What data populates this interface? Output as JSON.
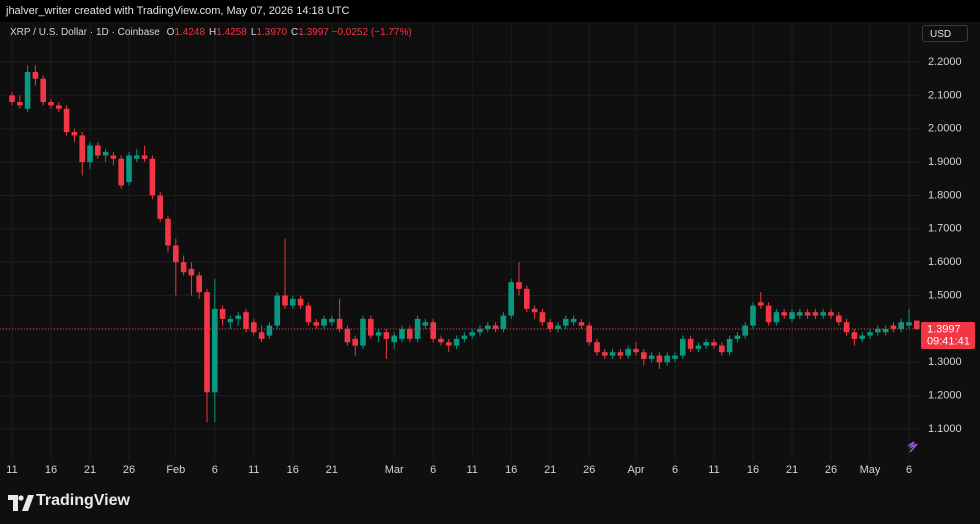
{
  "chart_data": {
    "type": "candlestick",
    "header": "jhalver_writer created with TradingView.com, May 07, 2026 14:18 UTC",
    "ohlc_legend": [
      {
        "key": "O",
        "value": "1.4248"
      },
      {
        "key": "H",
        "value": "1.4258"
      },
      {
        "key": "L",
        "value": "1.3970"
      },
      {
        "key": "C",
        "value": "1.3997"
      }
    ],
    "change": "−0.0252 (−1.77%)",
    "currency": "USD",
    "last_price_label": "1.3997",
    "countdown": "09:41:41",
    "brand": "TradingView",
    "up_color": "#089981",
    "down_color": "#f23645",
    "grid": true,
    "categories": [
      "11",
      null,
      null,
      null,
      null,
      "16",
      null,
      null,
      null,
      null,
      "21",
      null,
      null,
      null,
      null,
      "26",
      null,
      null,
      null,
      null,
      null,
      "Feb",
      null,
      null,
      null,
      null,
      "6",
      null,
      null,
      null,
      null,
      "11",
      null,
      null,
      null,
      null,
      "16",
      null,
      null,
      null,
      null,
      "21",
      null,
      null,
      null,
      null,
      null,
      null,
      null,
      "Mar",
      null,
      null,
      null,
      null,
      "6",
      null,
      null,
      null,
      null,
      "11",
      null,
      null,
      null,
      null,
      "16",
      null,
      null,
      null,
      null,
      "21",
      null,
      null,
      null,
      null,
      "26",
      null,
      null,
      null,
      null,
      null,
      "Apr",
      null,
      null,
      null,
      null,
      "6",
      null,
      null,
      null,
      null,
      "11",
      null,
      null,
      null,
      null,
      "16",
      null,
      null,
      null,
      null,
      "21",
      null,
      null,
      null,
      null,
      "26",
      null,
      null,
      null,
      null,
      "May",
      null,
      null,
      null,
      null,
      "6",
      null
    ],
    "series": [
      {
        "name": "XRP / U.S. Dollar · 1D · Coinbase",
        "values": [
          [
            2.1,
            2.11,
            2.07,
            2.08
          ],
          [
            2.08,
            2.1,
            2.06,
            2.07
          ],
          [
            2.06,
            2.19,
            2.05,
            2.17
          ],
          [
            2.17,
            2.19,
            2.13,
            2.15
          ],
          [
            2.15,
            2.16,
            2.07,
            2.08
          ],
          [
            2.08,
            2.09,
            2.06,
            2.07
          ],
          [
            2.07,
            2.08,
            2.05,
            2.06
          ],
          [
            2.06,
            2.07,
            1.98,
            1.99
          ],
          [
            1.99,
            2.0,
            1.96,
            1.98
          ],
          [
            1.98,
            1.99,
            1.86,
            1.9
          ],
          [
            1.9,
            1.96,
            1.88,
            1.95
          ],
          [
            1.95,
            1.96,
            1.91,
            1.92
          ],
          [
            1.92,
            1.94,
            1.9,
            1.93
          ],
          [
            1.92,
            1.93,
            1.89,
            1.91
          ],
          [
            1.91,
            1.92,
            1.82,
            1.83
          ],
          [
            1.84,
            1.93,
            1.83,
            1.92
          ],
          [
            1.91,
            1.94,
            1.9,
            1.92
          ],
          [
            1.92,
            1.95,
            1.9,
            1.91
          ],
          [
            1.91,
            1.92,
            1.79,
            1.8
          ],
          [
            1.8,
            1.81,
            1.72,
            1.73
          ],
          [
            1.73,
            1.74,
            1.63,
            1.65
          ],
          [
            1.65,
            1.67,
            1.5,
            1.6
          ],
          [
            1.6,
            1.62,
            1.56,
            1.57
          ],
          [
            1.58,
            1.6,
            1.5,
            1.56
          ],
          [
            1.56,
            1.57,
            1.49,
            1.51
          ],
          [
            1.51,
            1.52,
            1.12,
            1.21
          ],
          [
            1.21,
            1.55,
            1.12,
            1.46
          ],
          [
            1.46,
            1.47,
            1.41,
            1.43
          ],
          [
            1.42,
            1.44,
            1.4,
            1.43
          ],
          [
            1.43,
            1.45,
            1.41,
            1.44
          ],
          [
            1.45,
            1.46,
            1.39,
            1.4
          ],
          [
            1.42,
            1.43,
            1.38,
            1.39
          ],
          [
            1.39,
            1.41,
            1.36,
            1.37
          ],
          [
            1.38,
            1.42,
            1.37,
            1.41
          ],
          [
            1.41,
            1.51,
            1.4,
            1.5
          ],
          [
            1.5,
            1.67,
            1.46,
            1.47
          ],
          [
            1.47,
            1.5,
            1.46,
            1.49
          ],
          [
            1.49,
            1.5,
            1.46,
            1.47
          ],
          [
            1.47,
            1.48,
            1.41,
            1.42
          ],
          [
            1.42,
            1.43,
            1.4,
            1.41
          ],
          [
            1.41,
            1.44,
            1.4,
            1.43
          ],
          [
            1.42,
            1.44,
            1.41,
            1.43
          ],
          [
            1.43,
            1.49,
            1.39,
            1.4
          ],
          [
            1.4,
            1.41,
            1.35,
            1.36
          ],
          [
            1.37,
            1.38,
            1.32,
            1.35
          ],
          [
            1.35,
            1.44,
            1.34,
            1.43
          ],
          [
            1.43,
            1.44,
            1.37,
            1.38
          ],
          [
            1.38,
            1.4,
            1.36,
            1.39
          ],
          [
            1.39,
            1.4,
            1.31,
            1.37
          ],
          [
            1.36,
            1.39,
            1.34,
            1.38
          ],
          [
            1.37,
            1.41,
            1.36,
            1.4
          ],
          [
            1.4,
            1.41,
            1.36,
            1.37
          ],
          [
            1.37,
            1.44,
            1.36,
            1.43
          ],
          [
            1.41,
            1.43,
            1.4,
            1.42
          ],
          [
            1.42,
            1.43,
            1.36,
            1.37
          ],
          [
            1.37,
            1.38,
            1.35,
            1.36
          ],
          [
            1.36,
            1.37,
            1.33,
            1.35
          ],
          [
            1.35,
            1.38,
            1.34,
            1.37
          ],
          [
            1.37,
            1.39,
            1.36,
            1.38
          ],
          [
            1.38,
            1.4,
            1.37,
            1.39
          ],
          [
            1.39,
            1.41,
            1.38,
            1.4
          ],
          [
            1.4,
            1.42,
            1.39,
            1.41
          ],
          [
            1.41,
            1.42,
            1.39,
            1.4
          ],
          [
            1.4,
            1.45,
            1.39,
            1.44
          ],
          [
            1.44,
            1.55,
            1.43,
            1.54
          ],
          [
            1.54,
            1.6,
            1.5,
            1.52
          ],
          [
            1.52,
            1.53,
            1.45,
            1.46
          ],
          [
            1.46,
            1.47,
            1.43,
            1.45
          ],
          [
            1.45,
            1.46,
            1.41,
            1.42
          ],
          [
            1.42,
            1.43,
            1.39,
            1.4
          ],
          [
            1.4,
            1.42,
            1.39,
            1.41
          ],
          [
            1.41,
            1.44,
            1.4,
            1.43
          ],
          [
            1.42,
            1.44,
            1.41,
            1.43
          ],
          [
            1.42,
            1.43,
            1.4,
            1.41
          ],
          [
            1.41,
            1.42,
            1.35,
            1.36
          ],
          [
            1.36,
            1.37,
            1.32,
            1.33
          ],
          [
            1.33,
            1.34,
            1.31,
            1.32
          ],
          [
            1.32,
            1.34,
            1.31,
            1.33
          ],
          [
            1.33,
            1.34,
            1.31,
            1.32
          ],
          [
            1.32,
            1.35,
            1.31,
            1.34
          ],
          [
            1.34,
            1.36,
            1.32,
            1.33
          ],
          [
            1.33,
            1.34,
            1.29,
            1.31
          ],
          [
            1.31,
            1.33,
            1.3,
            1.32
          ],
          [
            1.32,
            1.33,
            1.28,
            1.3
          ],
          [
            1.3,
            1.33,
            1.29,
            1.32
          ],
          [
            1.31,
            1.33,
            1.3,
            1.32
          ],
          [
            1.32,
            1.38,
            1.31,
            1.37
          ],
          [
            1.37,
            1.38,
            1.33,
            1.34
          ],
          [
            1.34,
            1.36,
            1.33,
            1.35
          ],
          [
            1.35,
            1.37,
            1.34,
            1.36
          ],
          [
            1.36,
            1.37,
            1.34,
            1.35
          ],
          [
            1.35,
            1.36,
            1.32,
            1.33
          ],
          [
            1.33,
            1.38,
            1.32,
            1.37
          ],
          [
            1.37,
            1.39,
            1.36,
            1.38
          ],
          [
            1.38,
            1.42,
            1.37,
            1.41
          ],
          [
            1.41,
            1.48,
            1.4,
            1.47
          ],
          [
            1.48,
            1.51,
            1.46,
            1.47
          ],
          [
            1.47,
            1.48,
            1.41,
            1.42
          ],
          [
            1.42,
            1.46,
            1.41,
            1.45
          ],
          [
            1.45,
            1.46,
            1.43,
            1.44
          ],
          [
            1.43,
            1.46,
            1.42,
            1.45
          ],
          [
            1.44,
            1.46,
            1.43,
            1.45
          ],
          [
            1.45,
            1.46,
            1.43,
            1.44
          ],
          [
            1.45,
            1.46,
            1.43,
            1.44
          ],
          [
            1.44,
            1.46,
            1.43,
            1.45
          ],
          [
            1.45,
            1.46,
            1.43,
            1.44
          ],
          [
            1.44,
            1.45,
            1.41,
            1.42
          ],
          [
            1.42,
            1.43,
            1.38,
            1.39
          ],
          [
            1.39,
            1.4,
            1.35,
            1.37
          ],
          [
            1.37,
            1.39,
            1.36,
            1.38
          ],
          [
            1.38,
            1.4,
            1.37,
            1.39
          ],
          [
            1.39,
            1.41,
            1.38,
            1.4
          ],
          [
            1.39,
            1.41,
            1.38,
            1.4
          ],
          [
            1.41,
            1.42,
            1.39,
            1.4
          ],
          [
            1.4,
            1.43,
            1.39,
            1.42
          ],
          [
            1.41,
            1.46,
            1.4,
            1.42
          ],
          [
            1.4248,
            1.4258,
            1.397,
            1.3997
          ]
        ]
      }
    ],
    "ylim": [
      1.007,
      2.266
    ],
    "yticks": [
      {
        "value": 1.1,
        "label": "1.1000"
      },
      {
        "value": 1.2,
        "label": "1.2000"
      },
      {
        "value": 1.3,
        "label": "1.3000"
      },
      {
        "value": 1.4,
        "label": "1.4000"
      },
      {
        "value": 1.5,
        "label": "1.5000"
      },
      {
        "value": 1.6,
        "label": "1.6000"
      },
      {
        "value": 1.7,
        "label": "1.7000"
      },
      {
        "value": 1.8,
        "label": "1.8000"
      },
      {
        "value": 1.9,
        "label": "1.9000"
      },
      {
        "value": 2.0,
        "label": "2.0000"
      },
      {
        "value": 2.1,
        "label": "2.1000"
      },
      {
        "value": 2.2,
        "label": "2.2000"
      }
    ]
  }
}
